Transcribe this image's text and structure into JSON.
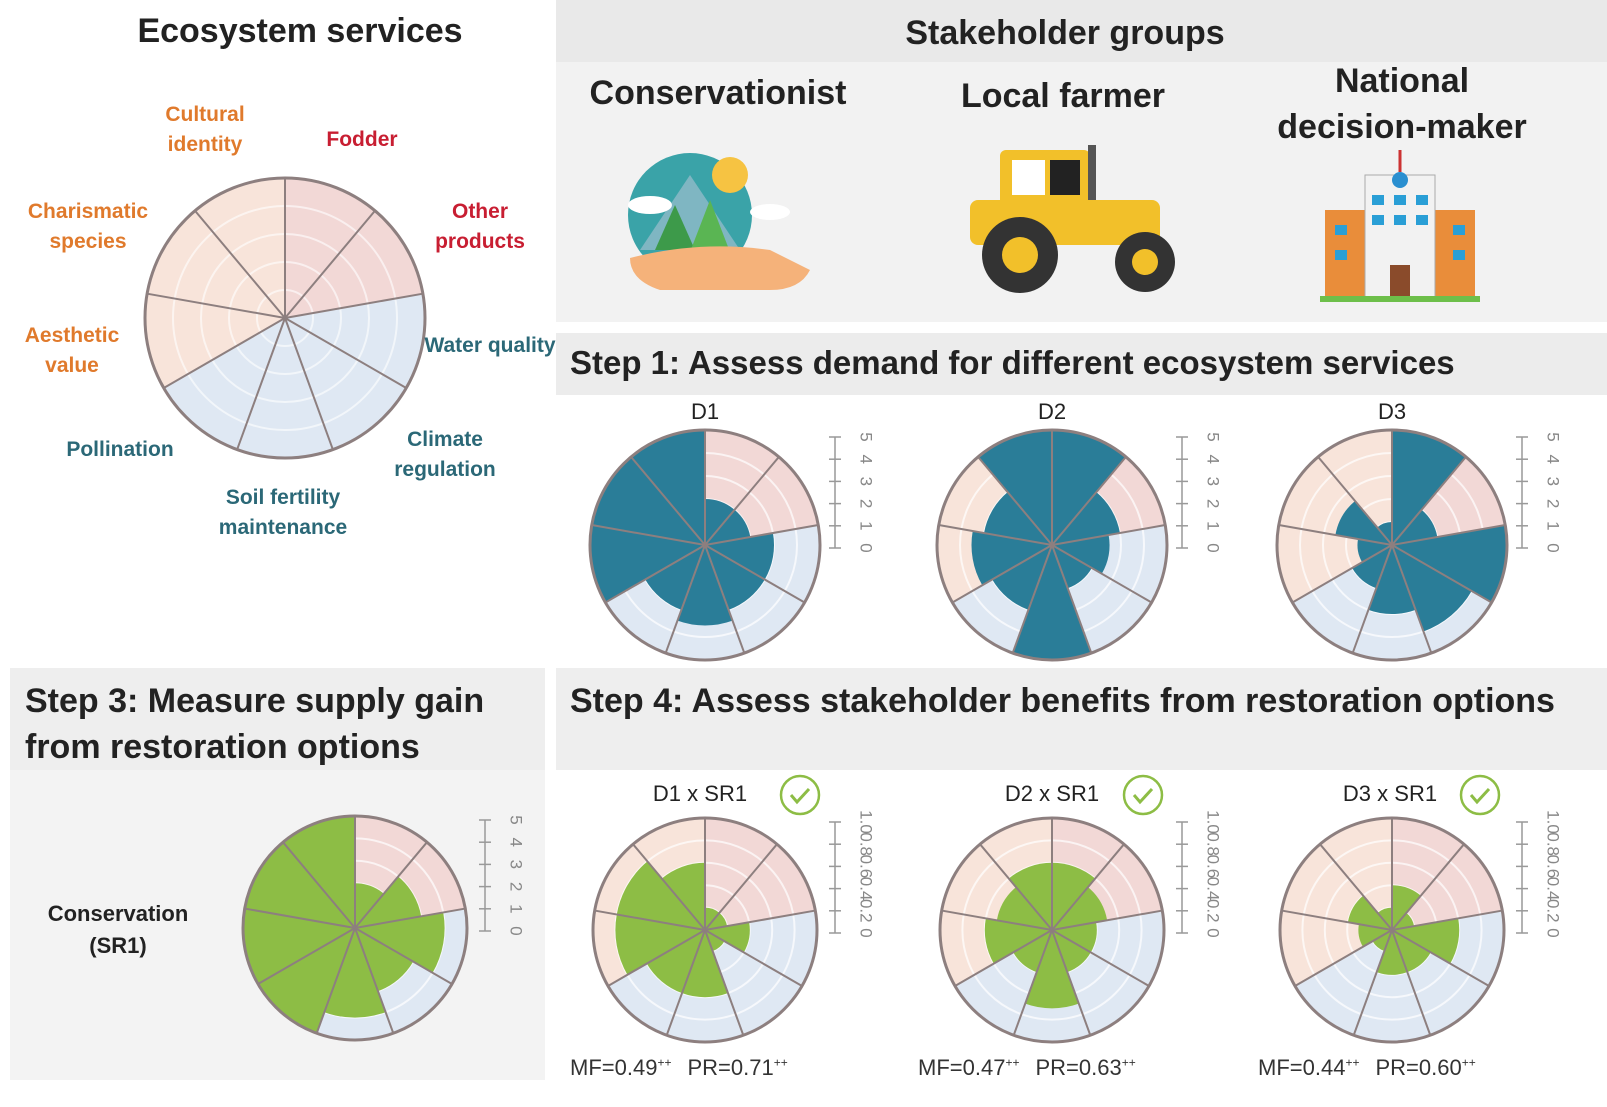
{
  "panels": {
    "stakeholder_title": "Stakeholder groups",
    "stakeholders": [
      "Conservationist",
      "Local farmer",
      "National decision-maker"
    ],
    "step1": "Step 1: Assess demand for different ecosystem services",
    "step3": "Step 3: Measure supply gain from restoration options",
    "step4": "Step 4: Assess stakeholder benefits from restoration options"
  },
  "chart_data": [
    {
      "type": "polar",
      "title": "Ecosystem services",
      "categories": [
        "Fodder",
        "Other products",
        "Water quality",
        "Climate regulation",
        "Soil fertility maintenance",
        "Pollination",
        "Aesthetic value",
        "Charismatic species",
        "Cultural identity"
      ],
      "label_colors": [
        "#c81e32",
        "#c81e32",
        "#2b6877",
        "#2b6877",
        "#2b6877",
        "#2b6877",
        "#e07a2c",
        "#e07a2c",
        "#e07a2c"
      ],
      "background_colors": [
        "#f2d8d6",
        "#f2d8d6",
        "#dfe8f3",
        "#dfe8f3",
        "#dfe8f3",
        "#dfe8f3",
        "#f8e4da",
        "#f8e4da",
        "#f8e4da"
      ]
    },
    {
      "type": "polar-bar",
      "title": "D1",
      "values": [
        2,
        2,
        3,
        3,
        3.5,
        3,
        5,
        5,
        5
      ],
      "color": "#2a7d98",
      "ylim": [
        0,
        5
      ],
      "yticks": [
        0,
        1,
        2,
        3,
        4,
        5
      ]
    },
    {
      "type": "polar-bar",
      "title": "D2",
      "values": [
        5,
        3,
        2.5,
        2,
        5,
        3,
        3.5,
        3,
        5
      ],
      "color": "#2a7d98",
      "ylim": [
        0,
        5
      ],
      "yticks": [
        0,
        1,
        2,
        3,
        4,
        5
      ]
    },
    {
      "type": "polar-bar",
      "title": "D3",
      "values": [
        5,
        2,
        5,
        4,
        3,
        2,
        1.5,
        2.5,
        1
      ],
      "color": "#2a7d98",
      "ylim": [
        0,
        5
      ],
      "yticks": [
        0,
        1,
        2,
        3,
        4,
        5
      ]
    },
    {
      "type": "polar-bar",
      "title": "Conservation (SR1)",
      "values": [
        2,
        3,
        4,
        3,
        4,
        5,
        5,
        5,
        5
      ],
      "color": "#8dbd45",
      "ylim": [
        0,
        5
      ],
      "yticks": [
        0,
        1,
        2,
        3,
        4,
        5
      ]
    },
    {
      "type": "polar-bar",
      "title": "D1 x SR1",
      "values": [
        0.2,
        0.2,
        0.4,
        0.2,
        0.6,
        0.6,
        0.8,
        0.8,
        0.6
      ],
      "color": "#8dbd45",
      "ylim": [
        0,
        1
      ],
      "yticks": [
        0,
        0.2,
        0.4,
        0.6,
        0.8,
        {
          "value": 1,
          "label": "1.0"
        }
      ],
      "metrics": [
        {
          "label": "MF=0.49",
          "mark": "++"
        },
        {
          "label": "PR=0.71",
          "mark": "++"
        }
      ]
    },
    {
      "type": "polar-bar",
      "title": "D2 x SR1",
      "values": [
        0.6,
        0.5,
        0.4,
        0.4,
        0.7,
        0.4,
        0.6,
        0.5,
        0.6
      ],
      "color": "#8dbd45",
      "ylim": [
        0,
        1
      ],
      "yticks": [
        0,
        0.2,
        0.4,
        0.6,
        0.8,
        {
          "value": 1,
          "label": "1.0"
        }
      ],
      "metrics": [
        {
          "label": "MF=0.47",
          "mark": "++"
        },
        {
          "label": "PR=0.63",
          "mark": "++"
        }
      ]
    },
    {
      "type": "polar-bar",
      "title": "D3 x SR1",
      "values": [
        0.4,
        0.2,
        0.6,
        0.4,
        0.4,
        0.2,
        0.3,
        0.4,
        0.2
      ],
      "color": "#8dbd45",
      "ylim": [
        0,
        1
      ],
      "yticks": [
        0,
        0.2,
        0.4,
        0.6,
        0.8,
        {
          "value": 1,
          "label": "1.0"
        }
      ],
      "metrics": [
        {
          "label": "MF=0.44",
          "mark": "++"
        },
        {
          "label": "PR=0.60",
          "mark": "++"
        }
      ]
    }
  ]
}
